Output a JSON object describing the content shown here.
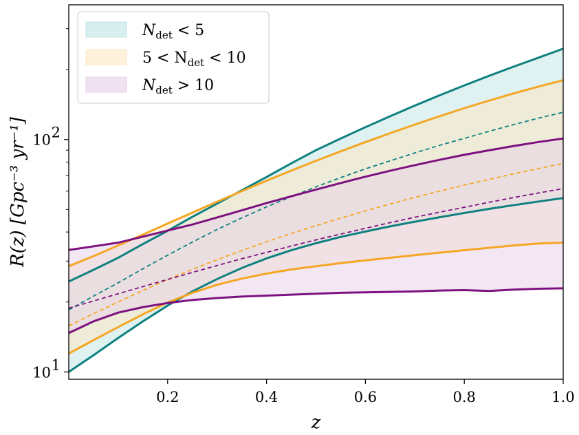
{
  "chart_data": {
    "type": "area",
    "xlabel": "z",
    "ylabel": "R(z) [Gpc⁻³ yr⁻¹]",
    "xlim": [
      0.0,
      1.0
    ],
    "ylim": [
      9.3,
      380
    ],
    "yscale": "log",
    "x_ticks": [
      0.2,
      0.4,
      0.6,
      0.8,
      1.0
    ],
    "x_tick_labels": [
      "0.2",
      "0.4",
      "0.6",
      "0.8",
      "1.0"
    ],
    "y_ticks": [
      10,
      100
    ],
    "y_tick_labels": [
      "10¹",
      "10²"
    ],
    "legend_position": "top-left",
    "series": [
      {
        "name": "N_det < 5",
        "label": "N",
        "label_sub": "det",
        "label_rest": " < 5",
        "color": "#0e8080",
        "fill": "#bfe3e3",
        "x": [
          0.0,
          0.05,
          0.1,
          0.15,
          0.2,
          0.25,
          0.3,
          0.35,
          0.4,
          0.45,
          0.5,
          0.55,
          0.6,
          0.65,
          0.7,
          0.75,
          0.8,
          0.85,
          0.9,
          0.95,
          1.0
        ],
        "upper": [
          24.5,
          27.5,
          31,
          35.5,
          40.5,
          46.5,
          53,
          60.5,
          69,
          79,
          90,
          101,
          113,
          126,
          140,
          155,
          171,
          188,
          206,
          225,
          246
        ],
        "lower": [
          10.0,
          11.8,
          14.0,
          16.5,
          19.3,
          22.2,
          25.1,
          28.0,
          30.8,
          33.4,
          35.8,
          38.1,
          40.2,
          42.3,
          44.3,
          46.3,
          48.3,
          50.3,
          52.2,
          54.1,
          56.0
        ],
        "median": [
          18.5,
          21.2,
          24.2,
          27.8,
          31.8,
          36.2,
          41,
          46,
          51.3,
          56.8,
          62.6,
          68.6,
          74.8,
          81,
          87.6,
          94.4,
          101.2,
          108.5,
          116,
          123.6,
          131
        ]
      },
      {
        "name": "5 < N_det < 10",
        "label": "5 < N",
        "label_sub": "det",
        "label_rest": " < 10",
        "color": "#f5a623",
        "fill": "#fde8c2",
        "x": [
          0.0,
          0.05,
          0.1,
          0.15,
          0.2,
          0.25,
          0.3,
          0.35,
          0.4,
          0.45,
          0.5,
          0.55,
          0.6,
          0.65,
          0.7,
          0.75,
          0.8,
          0.85,
          0.9,
          0.95,
          1.0
        ],
        "upper": [
          28.5,
          31.5,
          35,
          39,
          43.5,
          48.5,
          54,
          60,
          66.5,
          73.5,
          81,
          89,
          97.5,
          106.5,
          116,
          126,
          136.5,
          147,
          158,
          169,
          180
        ],
        "lower": [
          12.0,
          13.7,
          15.6,
          17.7,
          19.9,
          21.9,
          23.7,
          25.2,
          26.5,
          27.6,
          28.5,
          29.4,
          30.2,
          31.0,
          31.8,
          32.6,
          33.4,
          34.2,
          35.0,
          35.7,
          36.0
        ],
        "median": [
          15.8,
          17.8,
          20.0,
          22.4,
          25.0,
          27.6,
          30.4,
          33.3,
          36.3,
          39.4,
          42.6,
          45.9,
          49.3,
          52.8,
          56.4,
          60.0,
          63.7,
          67.4,
          71.2,
          75.0,
          79.0
        ]
      },
      {
        "name": "N_det > 10",
        "label": "N",
        "label_sub": "det",
        "label_rest": " > 10",
        "color": "#7d1180",
        "fill": "#e6cfe8",
        "x": [
          0.0,
          0.05,
          0.1,
          0.15,
          0.2,
          0.25,
          0.3,
          0.35,
          0.4,
          0.45,
          0.5,
          0.55,
          0.6,
          0.65,
          0.7,
          0.75,
          0.8,
          0.85,
          0.9,
          0.95,
          1.0
        ],
        "upper": [
          33.5,
          34.7,
          36.0,
          38.2,
          40.6,
          43.1,
          46.2,
          49.6,
          53.3,
          57.0,
          60.9,
          65.0,
          69.2,
          73.4,
          77.6,
          81.8,
          86.0,
          89.9,
          93.8,
          97.6,
          101.0
        ],
        "lower": [
          14.7,
          16.5,
          18.0,
          19.0,
          19.8,
          20.4,
          20.8,
          21.1,
          21.3,
          21.5,
          21.7,
          21.9,
          22.0,
          22.1,
          22.2,
          22.4,
          22.5,
          22.3,
          22.6,
          22.8,
          22.9
        ],
        "median": [
          18.8,
          20.2,
          21.7,
          23.3,
          25.0,
          26.8,
          28.7,
          30.7,
          32.7,
          34.8,
          37.0,
          39.2,
          41.5,
          43.9,
          46.3,
          48.7,
          51.1,
          53.7,
          56.3,
          58.9,
          61.5
        ]
      }
    ]
  }
}
